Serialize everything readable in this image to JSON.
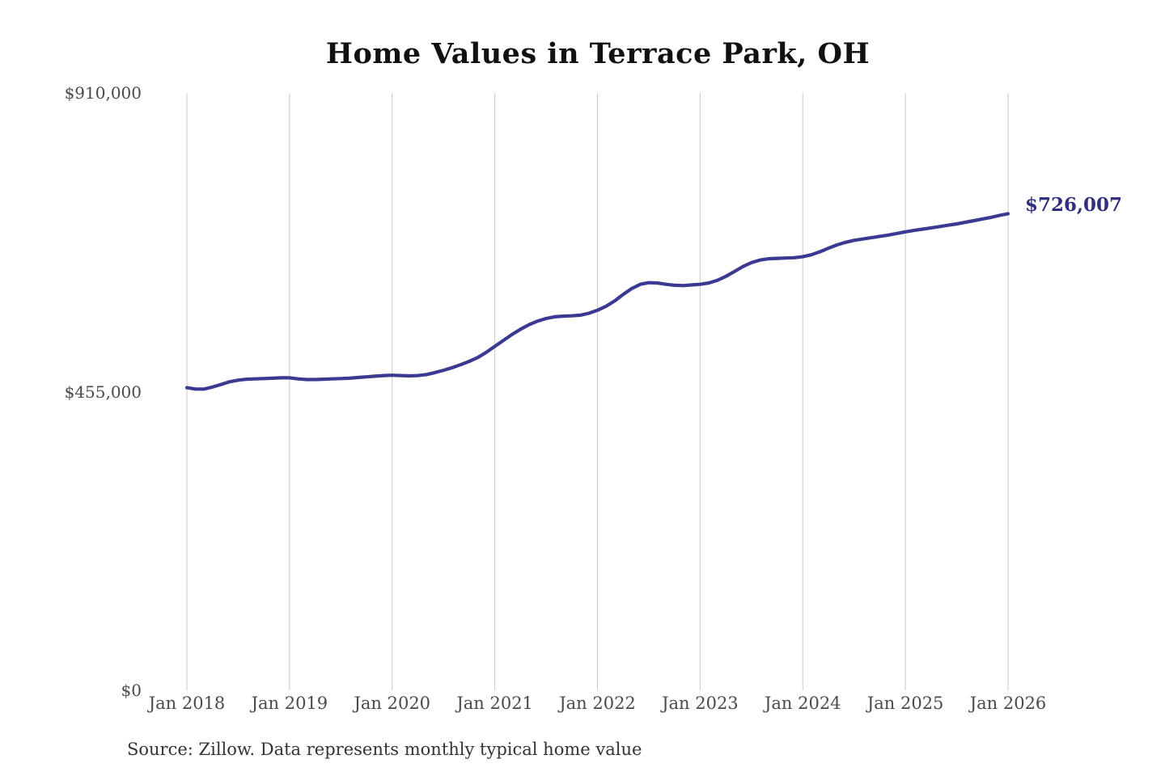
{
  "chart": {
    "title": "Home Values in Terrace Park, OH",
    "latest_value_label": "$726,007",
    "source": "Source: Zillow. Data represents monthly typical home value"
  },
  "colors": {
    "line": "#3b3a92",
    "latest_label": "#30307f",
    "grid": "#c9c9c9",
    "title_text": "#111111",
    "axis_text": "#4a4a4a",
    "source_text": "#333333",
    "background": "#ffffff"
  },
  "chart_data": {
    "type": "line",
    "title": "Home Values in Terrace Park, OH",
    "series_name": "Monthly typical home value",
    "x_start": "2018-01",
    "x_end": "2026-01",
    "frequency": "monthly",
    "x_tick_labels": [
      "Jan 2018",
      "Jan 2019",
      "Jan 2020",
      "Jan 2021",
      "Jan 2022",
      "Jan 2023",
      "Jan 2024",
      "Jan 2025",
      "Jan 2026"
    ],
    "y_ticks": [
      {
        "label": "$910,000",
        "value": 910000
      },
      {
        "label": "$455,000",
        "value": 455000
      },
      {
        "label": "$0",
        "value": 0
      }
    ],
    "ylim": [
      0,
      910000
    ],
    "grid": "vertical-only",
    "legend": "none",
    "annotation": {
      "text": "$726,007",
      "value": 726007,
      "position": "line-end"
    },
    "values": [
      461000,
      459000,
      459000,
      462000,
      466000,
      470000,
      472500,
      474000,
      474500,
      475000,
      475500,
      476000,
      476000,
      474500,
      473500,
      473500,
      474000,
      474500,
      475000,
      475500,
      476500,
      477500,
      478500,
      479500,
      480000,
      479500,
      479000,
      479500,
      481000,
      484000,
      487500,
      491500,
      496000,
      501000,
      507000,
      515000,
      524000,
      533000,
      542000,
      550000,
      557000,
      562500,
      566500,
      569000,
      570000,
      570500,
      571500,
      574500,
      579000,
      585000,
      593000,
      603000,
      612000,
      618500,
      621000,
      620500,
      618500,
      617000,
      616500,
      617500,
      618500,
      620500,
      624500,
      630500,
      638000,
      645500,
      651500,
      655500,
      657500,
      658000,
      658500,
      659000,
      660500,
      663500,
      668000,
      673500,
      678500,
      682500,
      685500,
      687500,
      689500,
      691500,
      693500,
      696000,
      698500,
      700500,
      702500,
      704500,
      706500,
      708500,
      710500,
      713000,
      715500,
      718000,
      720500,
      723500,
      726007
    ]
  }
}
